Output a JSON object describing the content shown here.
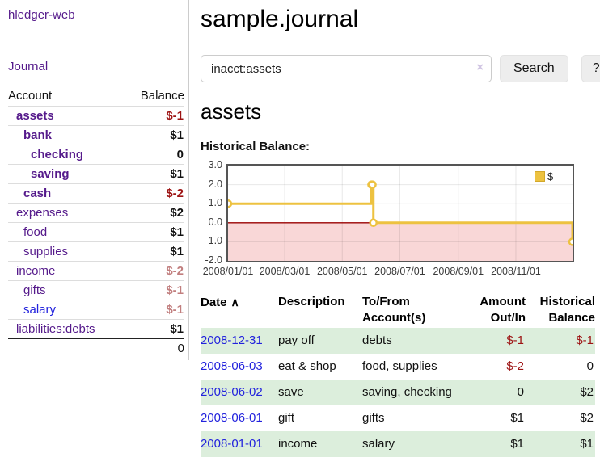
{
  "sidebar": {
    "app_title": "hledger-web",
    "nav_journal": "Journal",
    "accounts_header": {
      "account": "Account",
      "balance": "Balance"
    },
    "accounts": [
      {
        "name": "assets",
        "depth": 0,
        "bold": true,
        "link_color": "purple",
        "balance": "$-1",
        "balance_tone": "neg"
      },
      {
        "name": "bank",
        "depth": 1,
        "bold": true,
        "link_color": "purple",
        "balance": "$1",
        "balance_tone": "pos"
      },
      {
        "name": "checking",
        "depth": 2,
        "bold": true,
        "link_color": "purple",
        "balance": "0",
        "balance_tone": "pos"
      },
      {
        "name": "saving",
        "depth": 2,
        "bold": true,
        "link_color": "purple",
        "balance": "$1",
        "balance_tone": "pos"
      },
      {
        "name": "cash",
        "depth": 1,
        "bold": true,
        "link_color": "purple",
        "balance": "$-2",
        "balance_tone": "neg"
      },
      {
        "name": "expenses",
        "depth": 0,
        "bold": false,
        "link_color": "purple",
        "balance": "$2",
        "balance_tone": "pos"
      },
      {
        "name": "food",
        "depth": 1,
        "bold": false,
        "link_color": "purple",
        "balance": "$1",
        "balance_tone": "pos"
      },
      {
        "name": "supplies",
        "depth": 1,
        "bold": false,
        "link_color": "purple",
        "balance": "$1",
        "balance_tone": "pos"
      },
      {
        "name": "income",
        "depth": 0,
        "bold": false,
        "link_color": "purple",
        "balance": "$-2",
        "balance_tone": "faded"
      },
      {
        "name": "gifts",
        "depth": 1,
        "bold": false,
        "link_color": "purple",
        "balance": "$-1",
        "balance_tone": "faded"
      },
      {
        "name": "salary",
        "depth": 1,
        "bold": false,
        "link_color": "blue",
        "balance": "$-1",
        "balance_tone": "faded"
      },
      {
        "name": "liabilities:debts",
        "depth": 0,
        "bold": false,
        "link_color": "purple",
        "balance": "$1",
        "balance_tone": "pos"
      }
    ],
    "total": "0"
  },
  "main": {
    "title": "sample.journal",
    "search": {
      "value": "inacct:assets",
      "clear_icon": "×",
      "search_button": "Search",
      "help_button": "?"
    },
    "account_heading": "assets",
    "section_label": "Historical Balance:"
  },
  "chart_data": {
    "type": "line",
    "step": true,
    "title": "Historical Balance",
    "legend": [
      "$"
    ],
    "legend_position": "top-right",
    "grid": true,
    "x_domain": [
      "2008-01-01",
      "2008-12-31"
    ],
    "ylim": [
      -2,
      3
    ],
    "y_ticks": [
      3.0,
      2.0,
      1.0,
      0.0,
      -1.0,
      -2.0
    ],
    "x_ticks": [
      "2008/01/01",
      "2008/03/01",
      "2008/05/01",
      "2008/07/01",
      "2008/09/01",
      "2008/11/01"
    ],
    "series": [
      {
        "name": "$",
        "color": "#edc240",
        "points": [
          [
            "2008-01-01",
            1
          ],
          [
            "2008-06-01",
            2
          ],
          [
            "2008-06-02",
            2
          ],
          [
            "2008-06-03",
            0
          ],
          [
            "2008-12-31",
            -1
          ]
        ]
      }
    ],
    "zero_line_color": "#990000",
    "negative_fill": "#f9d7d7",
    "point_fill": "#ffffff",
    "border_color": "#555555"
  },
  "register": {
    "headers": {
      "date": "Date",
      "sort_icon": "∧",
      "description": "Description",
      "tofrom_line1": "To/From",
      "tofrom_line2": "Account(s)",
      "amount_line1": "Amount",
      "amount_line2": "Out/In",
      "historical_line1": "Historical",
      "historical_line2": "Balance"
    },
    "rows": [
      {
        "date": "2008-12-31",
        "description": "pay off",
        "accounts": "debts",
        "amount": "$-1",
        "amount_tone": "neg",
        "balance": "$-1",
        "balance_tone": "neg",
        "shaded": true
      },
      {
        "date": "2008-06-03",
        "description": "eat & shop",
        "accounts": "food, supplies",
        "amount": "$-2",
        "amount_tone": "neg",
        "balance": "0",
        "balance_tone": "pos",
        "shaded": false
      },
      {
        "date": "2008-06-02",
        "description": "save",
        "accounts": "saving, checking",
        "amount": "0",
        "amount_tone": "pos",
        "balance": "$2",
        "balance_tone": "pos",
        "shaded": true
      },
      {
        "date": "2008-06-01",
        "description": "gift",
        "accounts": "gifts",
        "amount": "$1",
        "amount_tone": "pos",
        "balance": "$2",
        "balance_tone": "pos",
        "shaded": false
      },
      {
        "date": "2008-01-01",
        "description": "income",
        "accounts": "salary",
        "amount": "$1",
        "amount_tone": "pos",
        "balance": "$1",
        "balance_tone": "pos",
        "shaded": true
      }
    ]
  },
  "colors": {
    "link_purple": "#551a8b",
    "link_blue": "#2222dd",
    "negative_red": "#9d1313",
    "faded_negative": "#c17e7e",
    "row_stripe_green": "#dceedc",
    "chart_gold": "#edc240",
    "chart_zero_red": "#990000",
    "chart_negative_pink": "#f9d7d7"
  }
}
